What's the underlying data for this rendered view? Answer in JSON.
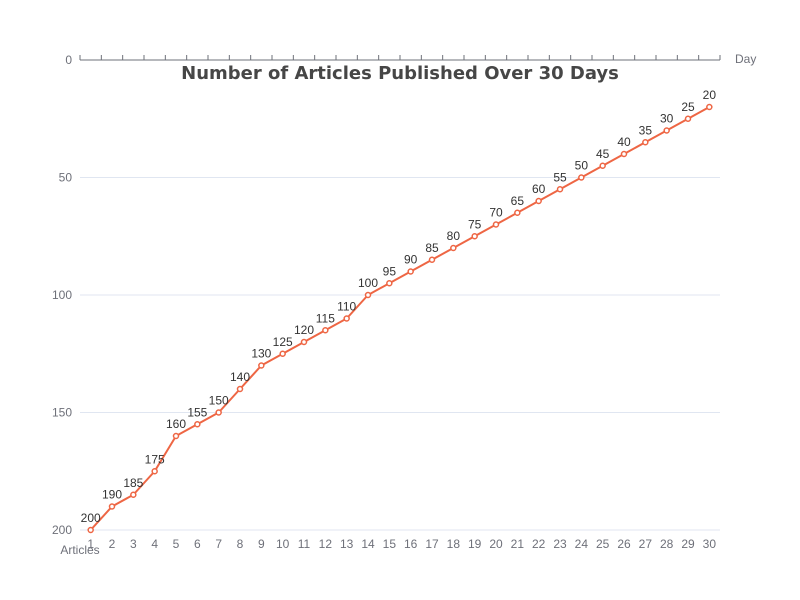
{
  "chart_data": {
    "type": "line",
    "title": "Number of Articles Published Over 30 Days",
    "xlabel": "Day",
    "ylabel": "Articles",
    "categories": [
      "1",
      "2",
      "3",
      "4",
      "5",
      "6",
      "7",
      "8",
      "9",
      "10",
      "11",
      "12",
      "13",
      "14",
      "15",
      "16",
      "17",
      "18",
      "19",
      "20",
      "21",
      "22",
      "23",
      "24",
      "25",
      "26",
      "27",
      "28",
      "29",
      "30"
    ],
    "series": [
      {
        "values": [
          200,
          190,
          185,
          175,
          160,
          155,
          150,
          140,
          130,
          125,
          120,
          115,
          110,
          100,
          95,
          90,
          85,
          80,
          75,
          70,
          65,
          60,
          55,
          50,
          45,
          40,
          35,
          30,
          25,
          20
        ]
      }
    ],
    "ylim": [
      0,
      200
    ],
    "y_inverted": true,
    "y_ticks": [
      0,
      50,
      100,
      150,
      200
    ],
    "x_axis_position": "top",
    "grid": true,
    "line_color": "#ee6644"
  }
}
